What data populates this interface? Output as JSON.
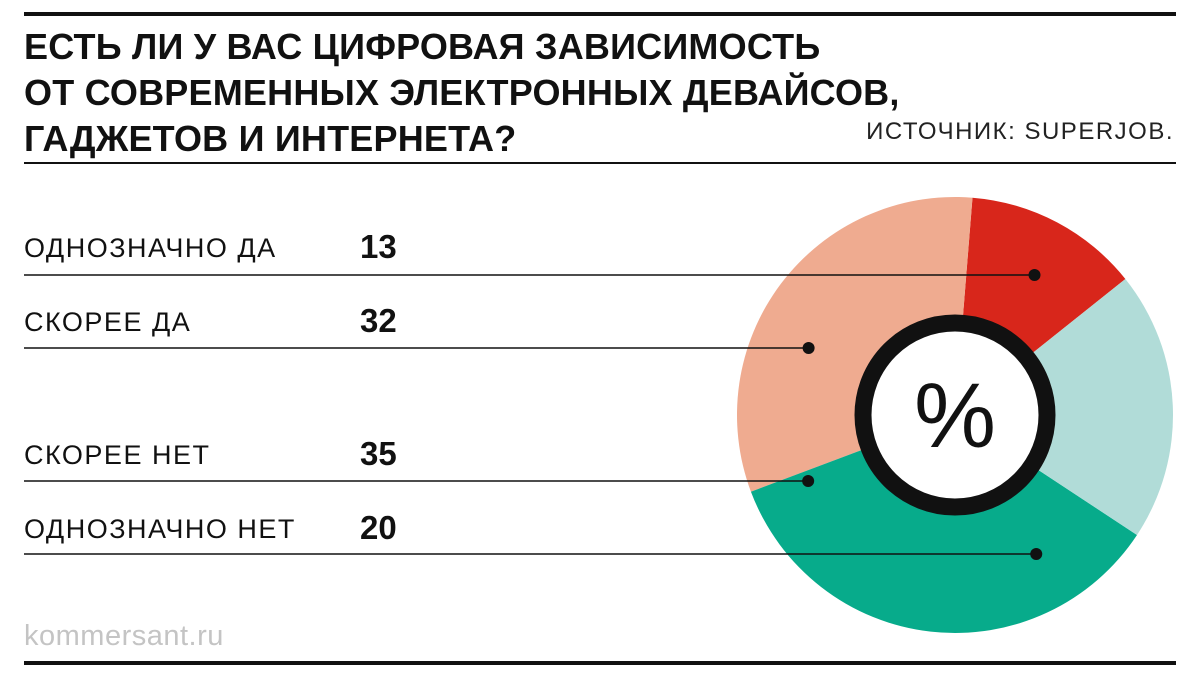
{
  "header": {
    "title_lines": [
      "ЕСТЬ ЛИ У ВАС ЦИФРОВАЯ ЗАВИСИМОСТЬ",
      "ОТ СОВРЕМЕННЫХ ЭЛЕКТРОННЫХ ДЕВАЙСОВ,",
      "ГАДЖЕТОВ И ИНТЕРНЕТА?"
    ],
    "source": "ИСТОЧНИК: SUPERJOB."
  },
  "center_label": "%",
  "footer": {
    "brand": "kommersant.ru"
  },
  "colors": {
    "definitely_yes": "#d8261b",
    "rather_yes": "#efab90",
    "rather_no": "#07ab8b",
    "definitely_no": "#b1dcd8",
    "text": "#111111",
    "brand_text": "#c4c4c4"
  },
  "chart_data": {
    "type": "pie",
    "style": "donut",
    "unit": "%",
    "categories": [
      "ОДНОЗНАЧНО ДА",
      "СКОРЕЕ ДА",
      "СКОРЕЕ НЕТ",
      "ОДНОЗНАЧНО НЕТ"
    ],
    "values": [
      13,
      32,
      35,
      20
    ],
    "value_labels": [
      "13",
      "32",
      "35",
      "20"
    ],
    "legend_placement": "left"
  }
}
